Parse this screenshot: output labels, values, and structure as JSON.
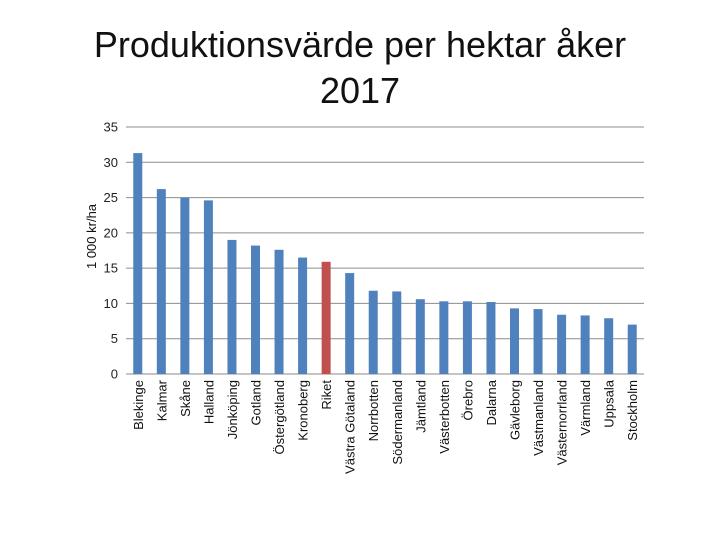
{
  "chart_data": {
    "type": "bar",
    "title_line1": "Produktionsvärde per hektar åker",
    "title_line2": "2017",
    "xlabel": "",
    "ylabel": "1 000 kr/ha",
    "ylim": [
      0,
      35
    ],
    "yticks": [
      0,
      5,
      10,
      15,
      20,
      25,
      30,
      35
    ],
    "grid": true,
    "legend": "none",
    "bar_color": "#4F81BD",
    "highlight_color": "#C0504D",
    "highlight_category": "Riket",
    "categories": [
      "Blekinge",
      "Kalmar",
      "Skåne",
      "Halland",
      "Jönköping",
      "Gotland",
      "Östergötland",
      "Kronoberg",
      "Riket",
      "Västra Götaland",
      "Norrbotten",
      "Södermanland",
      "Jämtland",
      "Västerbotten",
      "Örebro",
      "Dalarna",
      "Gävleborg",
      "Västmanland",
      "Västernorrland",
      "Värmland",
      "Uppsala",
      "Stockholm"
    ],
    "values": [
      31.3,
      26.2,
      25.0,
      24.6,
      19.0,
      18.2,
      17.6,
      16.5,
      15.9,
      14.3,
      11.8,
      11.7,
      10.6,
      10.3,
      10.3,
      10.2,
      9.3,
      9.2,
      8.4,
      8.3,
      7.9,
      7.0
    ]
  }
}
